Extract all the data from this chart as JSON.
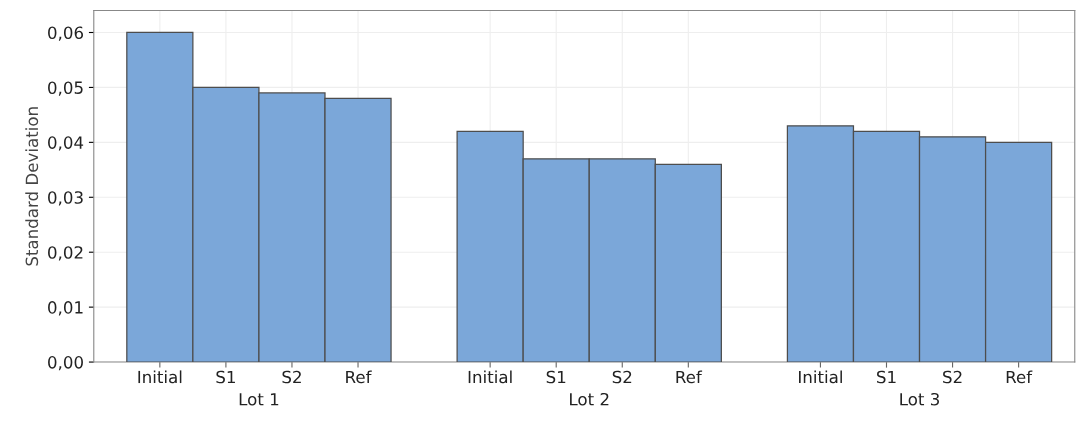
{
  "chart_data": {
    "type": "bar",
    "ylabel": "Standard Deviation",
    "categories": [
      "Initial",
      "S1",
      "S2",
      "Ref",
      null,
      "Initial",
      "S1",
      "S2",
      "Ref",
      null,
      "Initial",
      "S1",
      "S2",
      "Ref"
    ],
    "values": [
      0.06,
      0.05,
      0.049,
      0.048,
      null,
      0.042,
      0.037,
      0.037,
      0.036,
      null,
      0.043,
      0.042,
      0.041,
      0.04
    ],
    "color": "#7ba7d9",
    "ylim": [
      0,
      0.064
    ],
    "yticks": [
      {
        "value": 0,
        "label": "0,00"
      },
      {
        "value": 0.01,
        "label": "0,01"
      },
      {
        "value": 0.02,
        "label": "0,02"
      },
      {
        "value": 0.03,
        "label": "0,03"
      },
      {
        "value": 0.04,
        "label": "0,04"
      },
      {
        "value": 0.05,
        "label": "0,05"
      },
      {
        "value": 0.06,
        "label": "0,06"
      }
    ],
    "grid": true,
    "annotations": [
      "Lot 1",
      "Lot 2",
      "Lot 3"
    ]
  }
}
